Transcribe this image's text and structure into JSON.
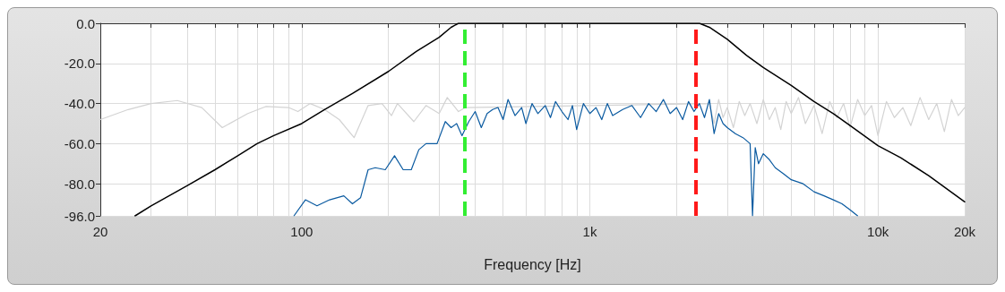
{
  "chart_data": {
    "type": "line",
    "xlabel": "Frequency [Hz]",
    "log": "x",
    "grid": true,
    "marker": "none",
    "line_style": "solid",
    "xlim": [
      20,
      20000
    ],
    "ylim": [
      -96,
      0
    ],
    "xticks": [
      20,
      {
        "value": 30,
        "label": null
      },
      {
        "value": 40,
        "label": null
      },
      {
        "value": 50,
        "label": null
      },
      {
        "value": 60,
        "label": null
      },
      {
        "value": 70,
        "label": null
      },
      {
        "value": 80,
        "label": null
      },
      {
        "value": 90,
        "label": null
      },
      100,
      {
        "value": 200,
        "label": null
      },
      {
        "value": 300,
        "label": null
      },
      {
        "value": 400,
        "label": null
      },
      {
        "value": 500,
        "label": null
      },
      {
        "value": 600,
        "label": null
      },
      {
        "value": 700,
        "label": null
      },
      {
        "value": 800,
        "label": null
      },
      {
        "value": 900,
        "label": null
      },
      {
        "value": 1000,
        "label": "1k"
      },
      {
        "value": 2000,
        "label": null
      },
      {
        "value": 3000,
        "label": null
      },
      {
        "value": 4000,
        "label": null
      },
      {
        "value": 5000,
        "label": null
      },
      {
        "value": 6000,
        "label": null
      },
      {
        "value": 7000,
        "label": null
      },
      {
        "value": 8000,
        "label": null
      },
      {
        "value": 9000,
        "label": null
      },
      {
        "value": 10000,
        "label": "10k"
      },
      {
        "value": 20000,
        "label": "20k"
      }
    ],
    "yticks": [
      {
        "value": 0,
        "label": "0.0"
      },
      {
        "value": -20,
        "label": "-20.0"
      },
      {
        "value": -40,
        "label": "-40.0"
      },
      {
        "value": -60,
        "label": "-60.0"
      },
      {
        "value": -80,
        "label": "-80.0"
      },
      {
        "value": -96,
        "label": "-96.0"
      }
    ],
    "series": [
      {
        "color": "#d3d3d3",
        "x": [
          20,
          25,
          30,
          37,
          45,
          53,
          65,
          75,
          90,
          97,
          107,
          120,
          135,
          152,
          170,
          190,
          205,
          215,
          245,
          270,
          300,
          320,
          350,
          370,
          2600,
          2700,
          2800,
          2900,
          3000,
          3150,
          3300,
          3450,
          3600,
          3800,
          4000,
          4200,
          4400,
          4600,
          4800,
          5000,
          5300,
          5600,
          6000,
          6400,
          6800,
          7200,
          7600,
          8000,
          8500,
          9000,
          9500,
          10000,
          10700,
          11400,
          12200,
          13000,
          14000,
          15000,
          16000,
          17000,
          18000,
          19000,
          20000
        ],
        "values": [
          -48,
          -43,
          -40,
          -38.5,
          -42,
          -52,
          -45,
          -41.5,
          -42,
          -44,
          -40,
          -43,
          -48,
          -57,
          -41,
          -40,
          -46,
          -40,
          -49,
          -41,
          -45,
          -37,
          -44,
          -42,
          -40,
          -50,
          -38,
          -47,
          -42,
          -52,
          -39,
          -46,
          -40,
          -50,
          -38,
          -48,
          -42,
          -53,
          -39,
          -45,
          -37,
          -50,
          -41,
          -55,
          -39,
          -47,
          -40,
          -52,
          -38,
          -46,
          -41,
          -56,
          -39,
          -47,
          -42,
          -51,
          -37,
          -48,
          -40,
          -54,
          -38,
          -46,
          -42
        ]
      },
      {
        "color": "#0a5aa0",
        "x": [
          94,
          103,
          113,
          125,
          140,
          150,
          160,
          170,
          180,
          195,
          210,
          225,
          240,
          255,
          270,
          295,
          315,
          330,
          345,
          360,
          380,
          400,
          420,
          440,
          460,
          480,
          500,
          520,
          550,
          580,
          600,
          630,
          660,
          700,
          730,
          760,
          800,
          840,
          870,
          900,
          950,
          1000,
          1050,
          1100,
          1150,
          1200,
          1300,
          1400,
          1500,
          1600,
          1700,
          1800,
          1900,
          2000,
          2100,
          2200,
          2300,
          2400,
          2500,
          2600,
          2700,
          2800,
          2900,
          3000,
          3200,
          3400,
          3600,
          3670,
          3750,
          3850,
          4000,
          4200,
          4400,
          4700,
          5000,
          5500,
          6000,
          6500,
          7000,
          7500,
          8000,
          8500
        ],
        "values": [
          -96,
          -88,
          -91,
          -88,
          -86,
          -90,
          -87,
          -73,
          -72,
          -73,
          -66,
          -73,
          -73,
          -63,
          -60,
          -60,
          -49,
          -52,
          -50,
          -56,
          -49,
          -44,
          -52,
          -45,
          -43,
          -42,
          -48,
          -38,
          -46,
          -42,
          -50,
          -40,
          -45,
          -41,
          -47,
          -39,
          -44,
          -48,
          -41,
          -53,
          -40,
          -45,
          -42,
          -48,
          -40,
          -46,
          -43,
          -41,
          -47,
          -40,
          -44,
          -38,
          -45,
          -42,
          -48,
          -39,
          -44,
          -40,
          -47,
          -38,
          -55,
          -45,
          -50,
          -52,
          -55,
          -57,
          -60,
          -96,
          -62,
          -70,
          -65,
          -68,
          -72,
          -75,
          -78,
          -80,
          -84,
          -86,
          -88,
          -90,
          -93,
          -96
        ]
      },
      {
        "color": "#000000",
        "x": [
          26.4,
          30,
          40,
          50,
          60,
          70,
          80,
          100,
          120,
          150,
          200,
          250,
          300,
          330,
          350,
          2400,
          2600,
          3000,
          3500,
          4000,
          5000,
          6000,
          7000,
          8000,
          10000,
          12000,
          15000,
          20000
        ],
        "values": [
          -96,
          -91,
          -81,
          -73,
          -66,
          -60,
          -56,
          -50,
          -43,
          -35,
          -24,
          -14,
          -7,
          -2,
          0,
          0,
          -2,
          -8,
          -16,
          -22,
          -31,
          -39,
          -45,
          -51,
          -61,
          -67,
          -76,
          -89
        ]
      }
    ],
    "ref_lines": [
      {
        "axis": "x",
        "value": 367,
        "color": "#33ee33",
        "line_style": "dashed"
      },
      {
        "axis": "x",
        "value": 2325,
        "color": "#ff1a1a",
        "line_style": "dashed"
      }
    ]
  }
}
